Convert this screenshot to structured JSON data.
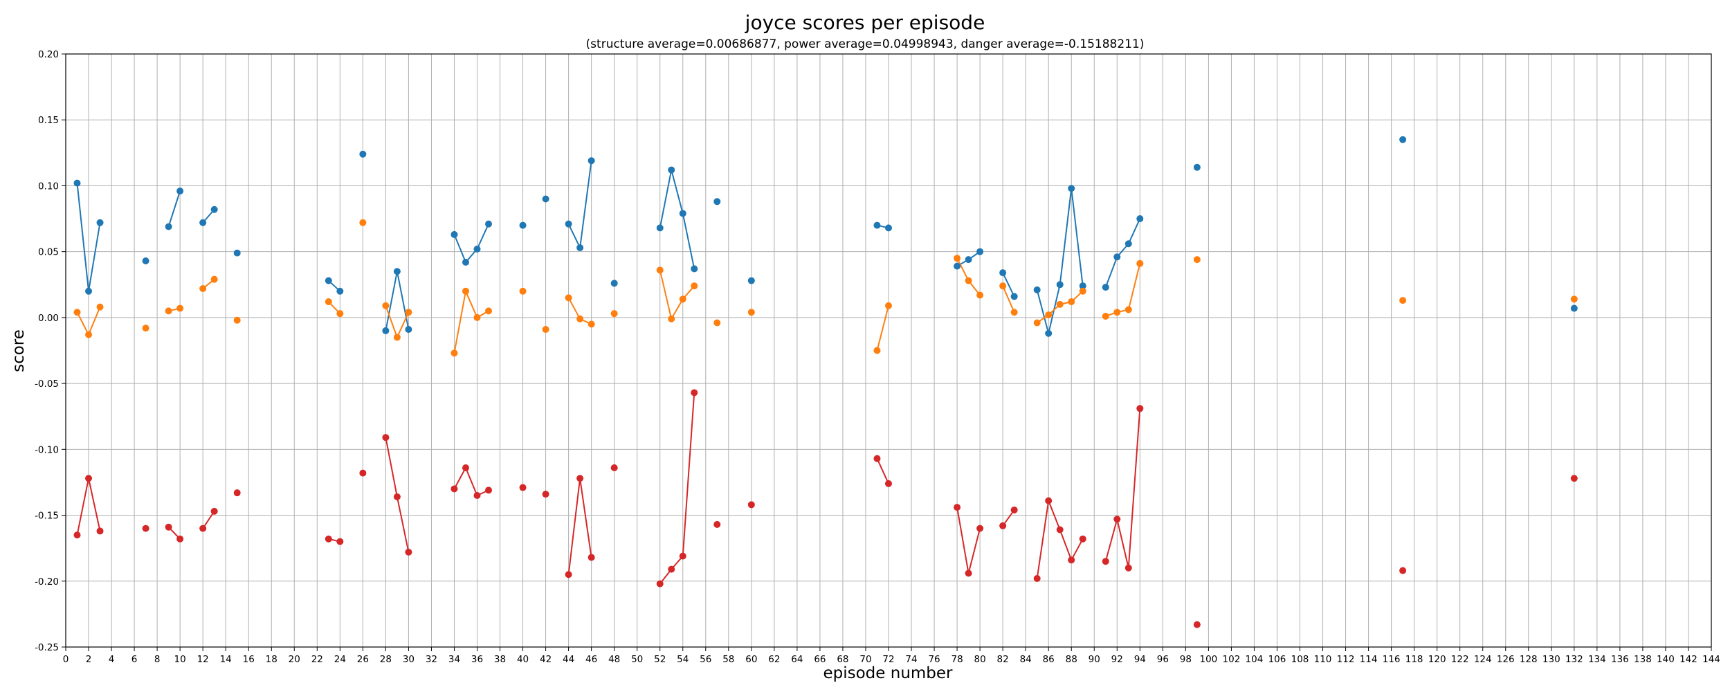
{
  "chart_data": {
    "type": "line",
    "title": "joyce scores per episode",
    "subtitle": "(structure average=0.00686877, power average=0.04998943, danger average=-0.15188211)",
    "xlabel": "episode number",
    "ylabel": "score",
    "xlim": [
      0,
      144
    ],
    "ylim": [
      -0.25,
      0.2
    ],
    "x_ticks": [
      0,
      2,
      4,
      6,
      8,
      10,
      12,
      14,
      16,
      18,
      20,
      22,
      24,
      26,
      28,
      30,
      32,
      34,
      36,
      38,
      40,
      42,
      44,
      46,
      48,
      50,
      52,
      54,
      56,
      58,
      60,
      62,
      64,
      66,
      68,
      70,
      72,
      74,
      76,
      78,
      80,
      82,
      84,
      86,
      88,
      90,
      92,
      94,
      96,
      98,
      100,
      102,
      104,
      106,
      108,
      110,
      112,
      114,
      116,
      118,
      120,
      122,
      124,
      126,
      128,
      130,
      132,
      134,
      136,
      138,
      140,
      142,
      144
    ],
    "y_ticks": [
      -0.25,
      -0.2,
      -0.15,
      -0.1,
      -0.05,
      0.0,
      0.05,
      0.1,
      0.15,
      0.2
    ],
    "grid": true,
    "episodes": [
      1,
      2,
      3,
      7,
      9,
      10,
      12,
      13,
      15,
      23,
      24,
      26,
      28,
      29,
      30,
      34,
      35,
      36,
      37,
      40,
      42,
      44,
      45,
      46,
      48,
      52,
      53,
      54,
      55,
      57,
      60,
      71,
      72,
      78,
      79,
      80,
      82,
      83,
      85,
      86,
      87,
      88,
      89,
      91,
      92,
      93,
      94,
      99,
      117,
      132
    ],
    "series": [
      {
        "color": "#1f77b4",
        "values": [
          0.102,
          0.02,
          0.072,
          0.043,
          0.069,
          0.096,
          0.072,
          0.082,
          0.049,
          0.028,
          0.02,
          0.124,
          -0.01,
          0.035,
          -0.009,
          0.063,
          0.042,
          0.052,
          0.071,
          0.07,
          0.09,
          0.071,
          0.053,
          0.119,
          0.026,
          0.068,
          0.112,
          0.079,
          0.037,
          0.088,
          0.028,
          0.07,
          0.068,
          0.039,
          0.044,
          0.05,
          0.034,
          0.016,
          0.021,
          -0.012,
          0.025,
          0.098,
          0.024,
          0.023,
          0.046,
          0.056,
          0.075,
          0.114,
          0.135,
          0.007
        ]
      },
      {
        "color": "#ff7f0e",
        "values": [
          0.004,
          -0.013,
          0.008,
          -0.008,
          0.005,
          0.007,
          0.022,
          0.029,
          -0.002,
          0.012,
          0.003,
          0.072,
          0.009,
          -0.015,
          0.004,
          -0.027,
          0.02,
          0.0,
          0.005,
          0.02,
          -0.009,
          0.015,
          -0.001,
          -0.005,
          0.003,
          0.036,
          -0.001,
          0.014,
          0.024,
          -0.004,
          0.004,
          -0.025,
          0.009,
          0.045,
          0.028,
          0.017,
          0.024,
          0.004,
          -0.004,
          0.002,
          0.01,
          0.012,
          0.02,
          0.001,
          0.004,
          0.006,
          0.041,
          0.044,
          0.013,
          0.014
        ]
      },
      {
        "color": "#d62728",
        "values": [
          -0.165,
          -0.122,
          -0.162,
          -0.16,
          -0.159,
          -0.168,
          -0.16,
          -0.147,
          -0.133,
          -0.168,
          -0.17,
          -0.118,
          -0.091,
          -0.136,
          -0.178,
          -0.13,
          -0.114,
          -0.135,
          -0.131,
          -0.129,
          -0.134,
          -0.195,
          -0.122,
          -0.182,
          -0.114,
          -0.202,
          -0.191,
          -0.181,
          -0.057,
          -0.157,
          -0.142,
          -0.107,
          -0.126,
          -0.144,
          -0.194,
          -0.16,
          -0.158,
          -0.146,
          -0.198,
          -0.139,
          -0.161,
          -0.184,
          -0.168,
          -0.185,
          -0.153,
          -0.19,
          -0.069,
          -0.233,
          -0.192,
          -0.122
        ]
      }
    ]
  }
}
